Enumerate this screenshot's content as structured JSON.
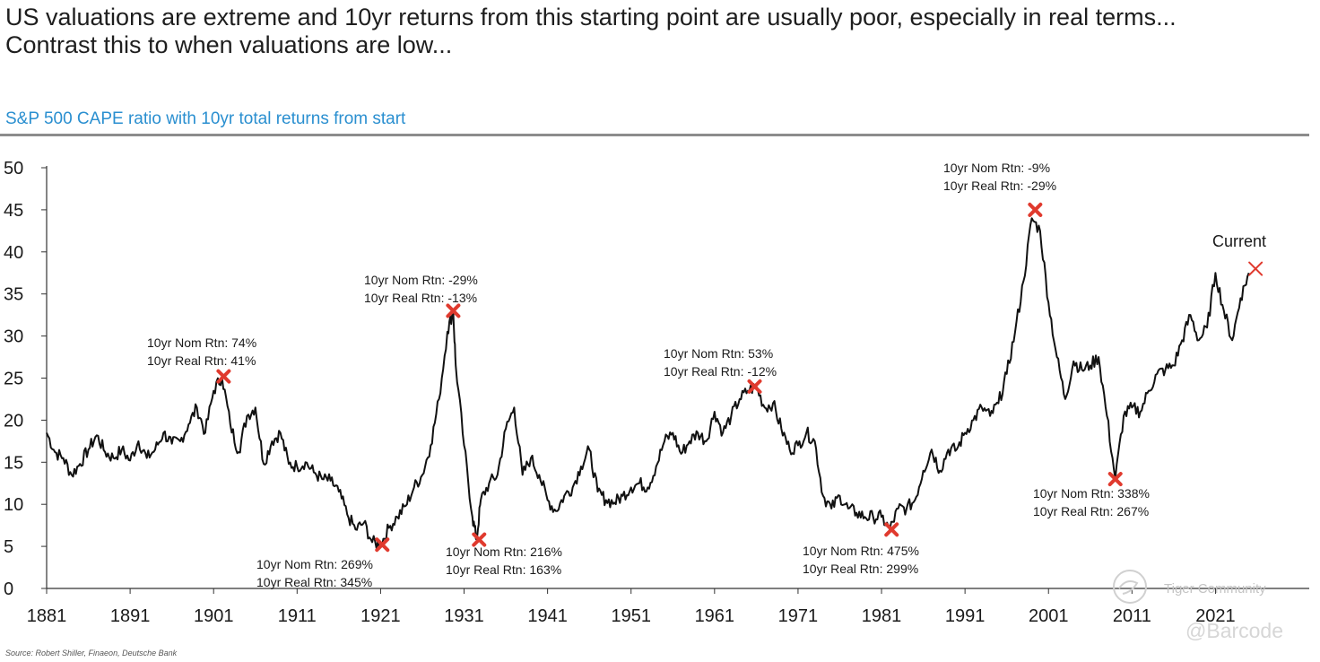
{
  "headline": "US valuations are extreme and 10yr returns from this starting point are usually poor, especially in real terms... Contrast this to when valuations are low...",
  "source": "Source: Robert Shiller, Finaeon, Deutsche Bank",
  "watermark": {
    "community": "Tiger Community",
    "handle": "@Barcode"
  },
  "colors": {
    "line": "#111111",
    "marker": "#e03a2e",
    "subtitle": "#2a8fd0",
    "rule": "#8c8c8c"
  },
  "chart_data": {
    "type": "line",
    "title": "S&P 500 CAPE ratio with 10yr total returns from start",
    "xlabel": "",
    "ylabel": "",
    "xlim": [
      1881,
      2026
    ],
    "ylim": [
      0,
      50
    ],
    "grid": false,
    "legend": "none",
    "x_ticks": [
      "1881",
      "1891",
      "1901",
      "1911",
      "1921",
      "1931",
      "1941",
      "1951",
      "1961",
      "1971",
      "1981",
      "1991",
      "2001",
      "2011",
      "2021"
    ],
    "y_ticks": [
      "0",
      "5",
      "10",
      "15",
      "20",
      "25",
      "30",
      "35",
      "40",
      "45",
      "50"
    ],
    "series": [
      {
        "name": "CAPE ratio",
        "points": [
          [
            1881,
            18.5
          ],
          [
            1882,
            16.2
          ],
          [
            1883,
            15.5
          ],
          [
            1884,
            13.5
          ],
          [
            1885,
            14.8
          ],
          [
            1886,
            16.5
          ],
          [
            1887,
            18.2
          ],
          [
            1888,
            16.2
          ],
          [
            1889,
            15.5
          ],
          [
            1890,
            16.5
          ],
          [
            1891,
            15.2
          ],
          [
            1892,
            17.5
          ],
          [
            1893,
            15.5
          ],
          [
            1894,
            16.5
          ],
          [
            1895,
            18.5
          ],
          [
            1896,
            17.2
          ],
          [
            1897,
            17.5
          ],
          [
            1898,
            19.5
          ],
          [
            1899,
            21.5
          ],
          [
            1900,
            18.5
          ],
          [
            1901,
            23.5
          ],
          [
            1902,
            25.2
          ],
          [
            1903,
            19.5
          ],
          [
            1904,
            16.2
          ],
          [
            1905,
            20.5
          ],
          [
            1906,
            21.5
          ],
          [
            1907,
            14.8
          ],
          [
            1908,
            17.5
          ],
          [
            1909,
            18.5
          ],
          [
            1910,
            14.8
          ],
          [
            1911,
            14.5
          ],
          [
            1912,
            15.0
          ],
          [
            1913,
            13.8
          ],
          [
            1914,
            13.0
          ],
          [
            1915,
            12.8
          ],
          [
            1916,
            11.5
          ],
          [
            1917,
            8.8
          ],
          [
            1918,
            7.0
          ],
          [
            1919,
            7.8
          ],
          [
            1920,
            5.5
          ],
          [
            1921,
            5.2
          ],
          [
            1922,
            7.2
          ],
          [
            1923,
            8.5
          ],
          [
            1924,
            9.8
          ],
          [
            1925,
            12.0
          ],
          [
            1926,
            13.5
          ],
          [
            1927,
            17.0
          ],
          [
            1928,
            22.5
          ],
          [
            1929,
            30.5
          ],
          [
            1929.7,
            33.0
          ],
          [
            1930,
            26.5
          ],
          [
            1931,
            17.0
          ],
          [
            1932,
            8.5
          ],
          [
            1932.5,
            5.8
          ],
          [
            1933,
            10.5
          ],
          [
            1934,
            12.5
          ],
          [
            1935,
            13.5
          ],
          [
            1936,
            19.0
          ],
          [
            1937,
            21.5
          ],
          [
            1938,
            13.5
          ],
          [
            1939,
            15.5
          ],
          [
            1940,
            13.5
          ],
          [
            1941,
            10.5
          ],
          [
            1942,
            9.2
          ],
          [
            1943,
            11.0
          ],
          [
            1944,
            12.0
          ],
          [
            1945,
            14.5
          ],
          [
            1946,
            16.5
          ],
          [
            1947,
            11.5
          ],
          [
            1948,
            10.5
          ],
          [
            1949,
            10.2
          ],
          [
            1950,
            11.0
          ],
          [
            1951,
            12.0
          ],
          [
            1952,
            12.5
          ],
          [
            1953,
            12.0
          ],
          [
            1954,
            14.5
          ],
          [
            1955,
            17.5
          ],
          [
            1956,
            18.5
          ],
          [
            1957,
            16.0
          ],
          [
            1958,
            17.5
          ],
          [
            1959,
            18.5
          ],
          [
            1960,
            17.5
          ],
          [
            1961,
            21.0
          ],
          [
            1962,
            18.5
          ],
          [
            1963,
            20.5
          ],
          [
            1964,
            22.5
          ],
          [
            1965,
            23.5
          ],
          [
            1966,
            24.0
          ],
          [
            1967,
            21.5
          ],
          [
            1968,
            22.0
          ],
          [
            1969,
            19.0
          ],
          [
            1970,
            16.5
          ],
          [
            1971,
            17.0
          ],
          [
            1972,
            18.5
          ],
          [
            1973,
            17.5
          ],
          [
            1974,
            11.0
          ],
          [
            1975,
            9.5
          ],
          [
            1976,
            11.0
          ],
          [
            1977,
            9.5
          ],
          [
            1978,
            9.0
          ],
          [
            1979,
            8.5
          ],
          [
            1980,
            8.5
          ],
          [
            1981,
            8.5
          ],
          [
            1982,
            7.0
          ],
          [
            1983,
            9.5
          ],
          [
            1984,
            9.5
          ],
          [
            1985,
            10.5
          ],
          [
            1986,
            14.0
          ],
          [
            1987,
            16.5
          ],
          [
            1988,
            14.0
          ],
          [
            1989,
            16.5
          ],
          [
            1990,
            16.5
          ],
          [
            1991,
            18.5
          ],
          [
            1992,
            20.0
          ],
          [
            1993,
            21.5
          ],
          [
            1994,
            20.5
          ],
          [
            1995,
            22.0
          ],
          [
            1996,
            25.5
          ],
          [
            1997,
            30.5
          ],
          [
            1998,
            36.5
          ],
          [
            1999,
            44.0
          ],
          [
            2000,
            42.5
          ],
          [
            2001,
            34.0
          ],
          [
            2002,
            27.5
          ],
          [
            2003,
            22.5
          ],
          [
            2004,
            27.0
          ],
          [
            2005,
            26.0
          ],
          [
            2006,
            26.5
          ],
          [
            2007,
            27.5
          ],
          [
            2008,
            20.5
          ],
          [
            2009,
            13.0
          ],
          [
            2010,
            20.5
          ],
          [
            2011,
            21.5
          ],
          [
            2012,
            21.0
          ],
          [
            2013,
            23.5
          ],
          [
            2014,
            25.5
          ],
          [
            2015,
            26.0
          ],
          [
            2016,
            26.5
          ],
          [
            2017,
            29.5
          ],
          [
            2018,
            32.5
          ],
          [
            2019,
            29.5
          ],
          [
            2020,
            31.0
          ],
          [
            2021,
            37.5
          ],
          [
            2022,
            33.0
          ],
          [
            2023,
            29.5
          ],
          [
            2024,
            34.5
          ],
          [
            2025,
            37.5
          ]
        ]
      }
    ],
    "markers": [
      {
        "x": 1902.2,
        "y": 25.2
      },
      {
        "x": 1921.2,
        "y": 5.2
      },
      {
        "x": 1929.7,
        "y": 33.0
      },
      {
        "x": 1932.8,
        "y": 5.8
      },
      {
        "x": 1965.8,
        "y": 24.0
      },
      {
        "x": 1982.2,
        "y": 7.0
      },
      {
        "x": 1999.4,
        "y": 45.0
      },
      {
        "x": 2009.0,
        "y": 13.0
      }
    ],
    "current_marker": {
      "x": 2025.8,
      "y": 38.0
    },
    "annotations": [
      {
        "nom": "10yr Nom Rtn: 74%",
        "real": "10yr Real Rtn: 41%"
      },
      {
        "nom": "10yr Nom Rtn: 269%",
        "real": "10yr Real Rtn: 345%"
      },
      {
        "nom": "10yr Nom Rtn: -29%",
        "real": "10yr Real Rtn: -13%"
      },
      {
        "nom": "10yr Nom Rtn: 216%",
        "real": "10yr Real Rtn: 163%"
      },
      {
        "nom": "10yr Nom Rtn: 53%",
        "real": "10yr Real Rtn: -12%"
      },
      {
        "nom": "10yr Nom Rtn: 475%",
        "real": "10yr Real Rtn: 299%"
      },
      {
        "nom": "10yr Nom Rtn: -9%",
        "real": "10yr Real Rtn: -29%"
      },
      {
        "nom": "10yr Nom Rtn: 338%",
        "real": "10yr Real Rtn: 267%"
      }
    ],
    "current_label": "Current"
  }
}
